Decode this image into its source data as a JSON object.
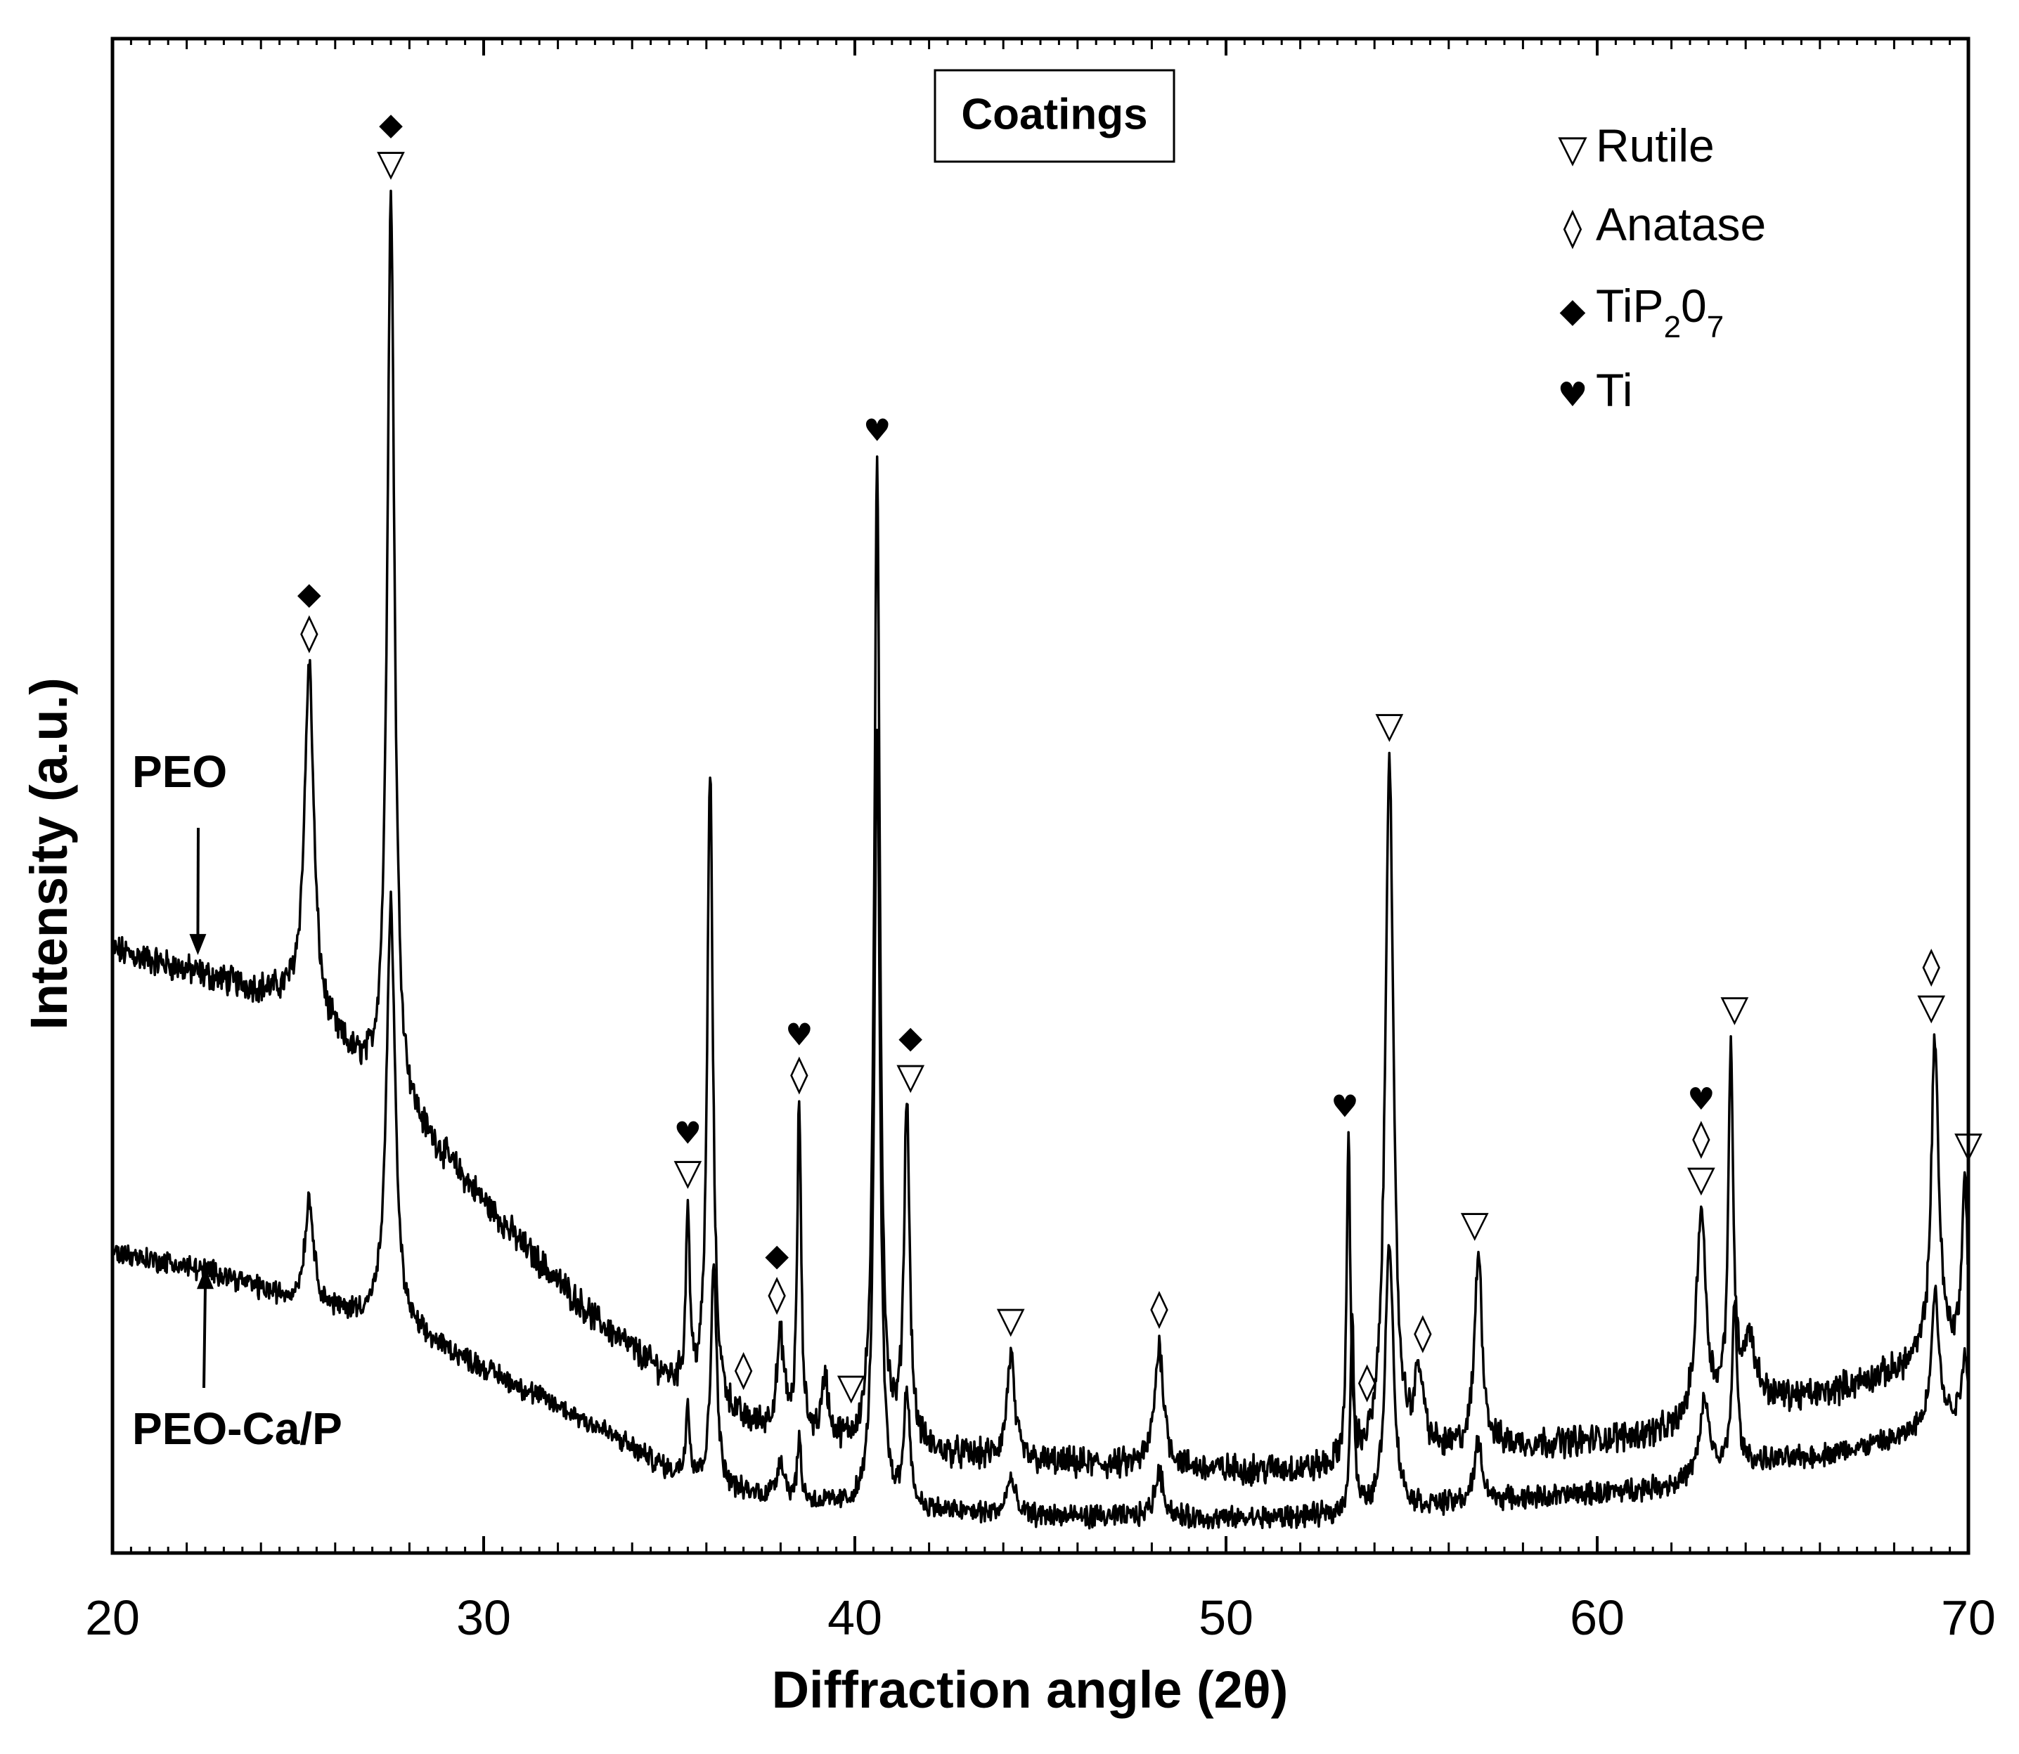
{
  "chart_data": {
    "type": "line",
    "title": "Coatings",
    "xlabel": "Diffraction angle (2θ)",
    "ylabel": "Intensity (a.u.)",
    "xlim": [
      20,
      70
    ],
    "ylim": [
      0,
      100
    ],
    "xticks": [
      "20",
      "30",
      "40",
      "50",
      "60",
      "70"
    ],
    "grid": false,
    "legend_position": "top-right",
    "legend": [
      {
        "key": "rutile",
        "glyph": "▽",
        "label": "Rutile"
      },
      {
        "key": "anatase",
        "glyph": "◊",
        "label": "Anatase"
      },
      {
        "key": "tip2o7",
        "glyph": "◆",
        "label": "TiP",
        "sub1": "2",
        "mid": "0",
        "sub2": "7"
      },
      {
        "key": "ti",
        "glyph": "♥",
        "label": "Ti"
      }
    ],
    "series": [
      {
        "name": "PEO",
        "baseline": [
          [
            20,
            39
          ],
          [
            25,
            35.5
          ],
          [
            27,
            30
          ],
          [
            29,
            25
          ],
          [
            31,
            19.5
          ],
          [
            33,
            14.5
          ],
          [
            35,
            10.5
          ],
          [
            37,
            7.5
          ],
          [
            40,
            6
          ],
          [
            45,
            5
          ],
          [
            50,
            4.5
          ],
          [
            53,
            4.5
          ],
          [
            57,
            6
          ],
          [
            60,
            6.5
          ],
          [
            62,
            7
          ],
          [
            64,
            9
          ],
          [
            66,
            9.5
          ],
          [
            68,
            11
          ],
          [
            70,
            13
          ]
        ],
        "peaks": [
          {
            "x": 25.3,
            "h": 23,
            "w": 0.15
          },
          {
            "x": 27.5,
            "h": 60,
            "w": 0.12
          },
          {
            "x": 35.5,
            "h": 12,
            "w": 0.06
          },
          {
            "x": 36.1,
            "h": 42,
            "w": 0.09
          },
          {
            "x": 38.0,
            "h": 6,
            "w": 0.12
          },
          {
            "x": 38.5,
            "h": 22,
            "w": 0.06
          },
          {
            "x": 39.2,
            "h": 4,
            "w": 0.1
          },
          {
            "x": 40.6,
            "h": 65,
            "w": 0.09
          },
          {
            "x": 41.4,
            "h": 23,
            "w": 0.09
          },
          {
            "x": 44.2,
            "h": 7,
            "w": 0.12
          },
          {
            "x": 48.2,
            "h": 8,
            "w": 0.15
          },
          {
            "x": 53.3,
            "h": 21,
            "w": 0.06
          },
          {
            "x": 54.4,
            "h": 47,
            "w": 0.13
          },
          {
            "x": 55.2,
            "h": 5,
            "w": 0.15
          },
          {
            "x": 56.8,
            "h": 13,
            "w": 0.12
          },
          {
            "x": 62.8,
            "h": 14,
            "w": 0.15
          },
          {
            "x": 63.6,
            "h": 23,
            "w": 0.08
          },
          {
            "x": 64.1,
            "h": 4,
            "w": 0.2
          },
          {
            "x": 69.1,
            "h": 21,
            "w": 0.12
          },
          {
            "x": 69.9,
            "h": 11,
            "w": 0.08
          }
        ]
      },
      {
        "name": "PEO-Ca/P",
        "baseline": [
          [
            20,
            19
          ],
          [
            23,
            17.5
          ],
          [
            25,
            15.5
          ],
          [
            27,
            14.5
          ],
          [
            29,
            12.5
          ],
          [
            31,
            10
          ],
          [
            33,
            7.5
          ],
          [
            35,
            4.5
          ],
          [
            37,
            3
          ],
          [
            40,
            2
          ],
          [
            45,
            1.5
          ],
          [
            50,
            1.3
          ],
          [
            53,
            1.5
          ],
          [
            57,
            2.5
          ],
          [
            60,
            3
          ],
          [
            62,
            3.5
          ],
          [
            64,
            5
          ],
          [
            66,
            5.5
          ],
          [
            68,
            6.5
          ],
          [
            70,
            8.5
          ]
        ],
        "peaks": [
          {
            "x": 25.3,
            "h": 7,
            "w": 0.15
          },
          {
            "x": 27.5,
            "h": 28,
            "w": 0.14
          },
          {
            "x": 35.5,
            "h": 5,
            "w": 0.06
          },
          {
            "x": 36.2,
            "h": 15,
            "w": 0.09
          },
          {
            "x": 38.0,
            "h": 2.5,
            "w": 0.12
          },
          {
            "x": 38.5,
            "h": 4,
            "w": 0.06
          },
          {
            "x": 40.6,
            "h": 52,
            "w": 0.09
          },
          {
            "x": 41.4,
            "h": 8,
            "w": 0.09
          },
          {
            "x": 44.2,
            "h": 2.5,
            "w": 0.12
          },
          {
            "x": 48.2,
            "h": 3,
            "w": 0.15
          },
          {
            "x": 53.4,
            "h": 13,
            "w": 0.06
          },
          {
            "x": 54.4,
            "h": 18,
            "w": 0.13
          },
          {
            "x": 56.8,
            "h": 4,
            "w": 0.12
          },
          {
            "x": 62.9,
            "h": 5,
            "w": 0.15
          },
          {
            "x": 63.7,
            "h": 11,
            "w": 0.08
          },
          {
            "x": 69.1,
            "h": 9,
            "w": 0.12
          },
          {
            "x": 69.9,
            "h": 4,
            "w": 0.08
          }
        ]
      }
    ],
    "annotations": [
      {
        "x": 25.3,
        "markers": [
          "anatase",
          "tip2o7"
        ]
      },
      {
        "x": 27.5,
        "markers": [
          "rutile",
          "tip2o7"
        ]
      },
      {
        "x": 35.5,
        "markers": [
          "rutile",
          "ti"
        ]
      },
      {
        "x": 37.0,
        "markers": [
          "anatase"
        ]
      },
      {
        "x": 37.9,
        "markers": [
          "anatase",
          "tip2o7"
        ]
      },
      {
        "x": 38.5,
        "markers": [
          "anatase",
          "ti"
        ]
      },
      {
        "x": 39.9,
        "markers": [
          "rutile"
        ]
      },
      {
        "x": 40.6,
        "markers": [
          "ti"
        ]
      },
      {
        "x": 41.5,
        "markers": [
          "rutile",
          "tip2o7"
        ]
      },
      {
        "x": 44.2,
        "markers": [
          "rutile"
        ]
      },
      {
        "x": 48.2,
        "markers": [
          "anatase"
        ]
      },
      {
        "x": 53.2,
        "markers": [
          "ti"
        ]
      },
      {
        "x": 53.8,
        "markers": [
          "anatase"
        ]
      },
      {
        "x": 54.4,
        "markers": [
          "rutile"
        ]
      },
      {
        "x": 55.3,
        "markers": [
          "anatase"
        ]
      },
      {
        "x": 56.7,
        "markers": [
          "rutile"
        ]
      },
      {
        "x": 62.8,
        "markers": [
          "rutile",
          "anatase",
          "ti"
        ]
      },
      {
        "x": 63.7,
        "markers": [
          "rutile"
        ]
      },
      {
        "x": 69.0,
        "markers": [
          "rutile",
          "anatase"
        ]
      },
      {
        "x": 70.0,
        "markers": [
          "rutile"
        ]
      }
    ],
    "series_labels": [
      {
        "text": "PEO",
        "series": "PEO",
        "arrow_x": 22.3
      },
      {
        "text": "PEO-Ca/P",
        "series": "PEO-Ca/P",
        "arrow_x": 22.5
      }
    ]
  }
}
